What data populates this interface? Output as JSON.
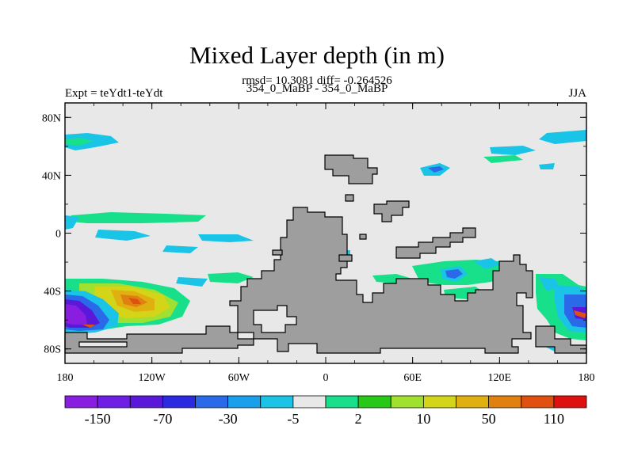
{
  "header": {
    "title": "Mixed Layer depth (in m)",
    "stats": "rmsd= 10.3081 diff= -0.264526",
    "subtitle": "354_0_MaBP - 354_0_MaBP",
    "left_label": "Expt = teYdt1-teYdt",
    "right_label": "JJA"
  },
  "map": {
    "projection": "cylindrical-equidistant",
    "lon_range": [
      -180,
      180
    ],
    "lat_range": [
      -90,
      90
    ],
    "x_ticks": [
      {
        "value": -180,
        "label": "180"
      },
      {
        "value": -120,
        "label": "120W"
      },
      {
        "value": -60,
        "label": "60W"
      },
      {
        "value": 0,
        "label": "0"
      },
      {
        "value": 60,
        "label": "60E"
      },
      {
        "value": 120,
        "label": "120E"
      },
      {
        "value": 180,
        "label": "180"
      }
    ],
    "y_ticks": [
      {
        "value": 80,
        "label": "80N"
      },
      {
        "value": 40,
        "label": "40N"
      },
      {
        "value": 0,
        "label": "0"
      },
      {
        "value": -40,
        "label": "40S"
      },
      {
        "value": -80,
        "label": "80S"
      }
    ],
    "colors": {
      "ocean_neutral": "#e8e8e8",
      "land": "#9e9e9e"
    }
  },
  "colorbar": {
    "colors": [
      "#8a1ee0",
      "#6f1ee6",
      "#5a18d8",
      "#2a2ae0",
      "#2a6ae8",
      "#1aa0ea",
      "#1ac4e6",
      "#e8e8e8",
      "#18e08a",
      "#28c818",
      "#a0e030",
      "#d4d418",
      "#e0b010",
      "#e08010",
      "#e05010",
      "#e01010"
    ],
    "tick_labels": [
      "-150",
      "-70",
      "-30",
      "-5",
      "2",
      "10",
      "50",
      "110"
    ]
  }
}
